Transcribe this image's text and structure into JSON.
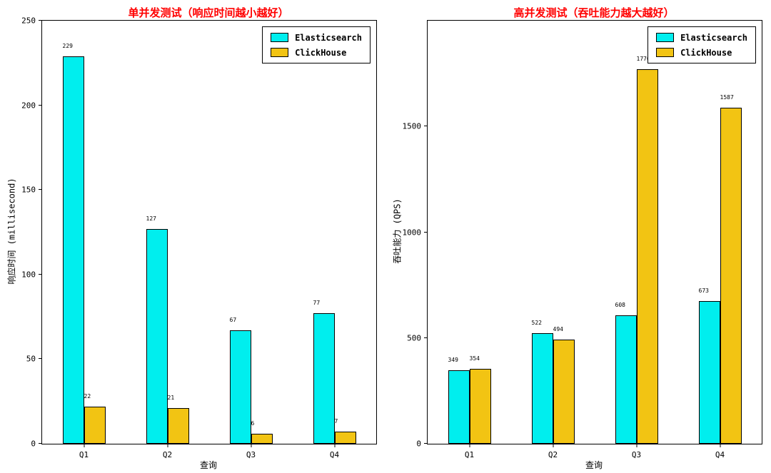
{
  "chart_data": [
    {
      "type": "bar",
      "title": "单并发测试（响应时间越小越好）",
      "title_color": "#ff0000",
      "xlabel": "查询",
      "ylabel": "响应时间 (millisecond)",
      "categories": [
        "Q1",
        "Q2",
        "Q3",
        "Q4"
      ],
      "series": [
        {
          "name": "Elasticsearch",
          "color": "#00EEEE",
          "values": [
            229,
            127,
            67,
            77
          ]
        },
        {
          "name": "ClickHouse",
          "color": "#F2C413",
          "values": [
            22,
            21,
            6,
            7
          ]
        }
      ],
      "ylim": [
        0,
        250
      ],
      "yticks": [
        0,
        50,
        100,
        150,
        200,
        250
      ],
      "grid": false,
      "legend_position": "top-right"
    },
    {
      "type": "bar",
      "title": "高并发测试（吞吐能力越大越好）",
      "title_color": "#ff0000",
      "xlabel": "查询",
      "ylabel": "吞吐能力 (QPS)",
      "categories": [
        "Q1",
        "Q2",
        "Q3",
        "Q4"
      ],
      "series": [
        {
          "name": "Elasticsearch",
          "color": "#00EEEE",
          "values": [
            349,
            522,
            608,
            673
          ]
        },
        {
          "name": "ClickHouse",
          "color": "#F2C413",
          "values": [
            354,
            494,
            1770,
            1587
          ]
        }
      ],
      "ylim": [
        0,
        2000
      ],
      "yticks": [
        0,
        500,
        1000,
        1500
      ],
      "grid": false,
      "legend_position": "top-right"
    }
  ]
}
